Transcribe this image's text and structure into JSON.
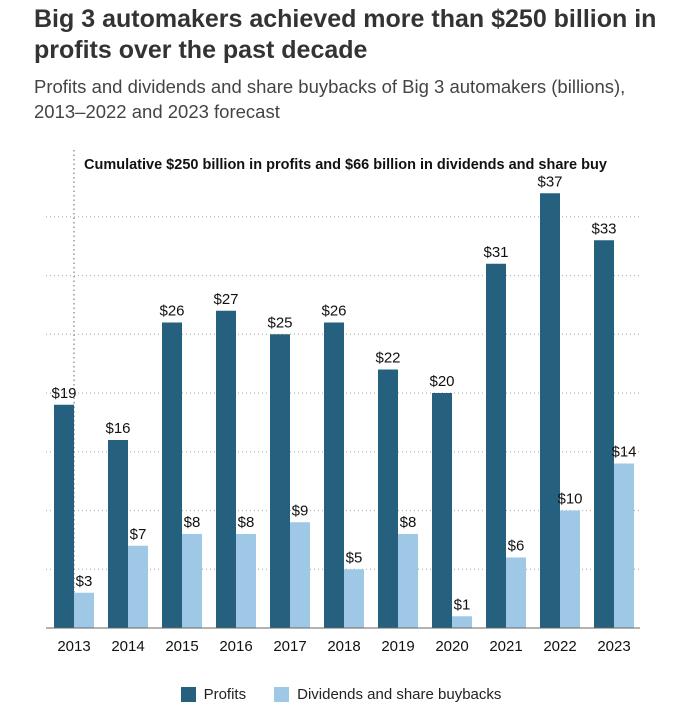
{
  "header": {
    "title": "Big 3 automakers achieved more than $250 billion in profits over the past decade",
    "subtitle": "Profits and dividends and share buybacks of Big 3 automakers (billions), 2013–2022 and 2023 forecast"
  },
  "colors": {
    "profits": "#26607f",
    "dividends": "#9ec8e6"
  },
  "chart_data": {
    "type": "bar",
    "title": "Big 3 automakers achieved more than $250 billion in profits over the past decade",
    "subtitle": "Profits and dividends and share buybacks of Big 3 automakers (billions), 2013–2022 and 2023 forecast",
    "annotation": "Cumulative $250 billion in profits and $66 billion in dividends and share buy",
    "categories": [
      "2013",
      "2014",
      "2015",
      "2016",
      "2017",
      "2018",
      "2019",
      "2020",
      "2021",
      "2022",
      "2023"
    ],
    "series": [
      {
        "name": "Profits",
        "values": [
          19,
          16,
          26,
          27,
          25,
          26,
          22,
          20,
          31,
          37,
          33
        ],
        "labels": [
          "$19",
          "$16",
          "$26",
          "$27",
          "$25",
          "$26",
          "$22",
          "$20",
          "$31",
          "$37",
          "$33"
        ]
      },
      {
        "name": "Dividends and share buybacks",
        "values": [
          3,
          7,
          8,
          8,
          9,
          5,
          8,
          1,
          6,
          10,
          14
        ],
        "labels": [
          "$3",
          "$7",
          "$8",
          "$8",
          "$9",
          "$5",
          "$8",
          "$1",
          "$6",
          "$10",
          "$14"
        ]
      }
    ],
    "xlabel": "",
    "ylabel": "",
    "ylim": [
      0,
      40
    ],
    "grid": true,
    "legend": "bottom-center"
  }
}
